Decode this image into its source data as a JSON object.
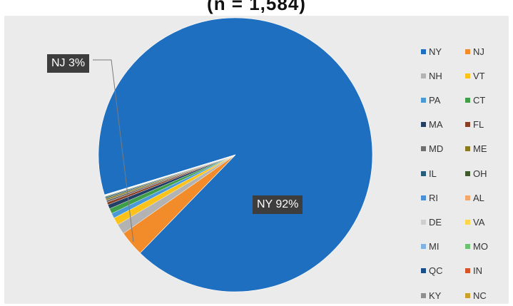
{
  "chart_data": {
    "type": "pie",
    "title": "(n = 1,584)",
    "slices": [
      {
        "name": "NY",
        "value": 92,
        "color": "#1f6fc0"
      },
      {
        "name": "NJ",
        "value": 3,
        "color": "#f28c2b"
      },
      {
        "name": "NH",
        "value": 1.2,
        "color": "#b3b3b3"
      },
      {
        "name": "VT",
        "value": 0.9,
        "color": "#fbc21a"
      },
      {
        "name": "PA",
        "value": 0.6,
        "color": "#4b9ad8"
      },
      {
        "name": "CT",
        "value": 0.6,
        "color": "#3f9e48"
      },
      {
        "name": "MA",
        "value": 0.5,
        "color": "#233f66"
      },
      {
        "name": "FL",
        "value": 0.3,
        "color": "#8a3e24"
      },
      {
        "name": "MD",
        "value": 0.25,
        "color": "#6f6f6f"
      },
      {
        "name": "ME",
        "value": 0.2,
        "color": "#8c7a1e"
      },
      {
        "name": "IL",
        "value": 0.15,
        "color": "#275d7a"
      },
      {
        "name": "OH",
        "value": 0.1,
        "color": "#3f5a2d"
      },
      {
        "name": "RI",
        "value": 0.05,
        "color": "#4a90d9"
      },
      {
        "name": "AL",
        "value": 0.04,
        "color": "#f4a76a"
      },
      {
        "name": "DE",
        "value": 0.03,
        "color": "#cfcfcf"
      },
      {
        "name": "VA",
        "value": 0.02,
        "color": "#ffd54a"
      },
      {
        "name": "MI",
        "value": 0.02,
        "color": "#7fb3e3"
      },
      {
        "name": "MO",
        "value": 0.02,
        "color": "#6cc36f"
      },
      {
        "name": "QC",
        "value": 0.01,
        "color": "#1b4f8c"
      },
      {
        "name": "IN",
        "value": 0.01,
        "color": "#d9532a"
      },
      {
        "name": "KY",
        "value": 0.01,
        "color": "#8f8f8f"
      },
      {
        "name": "NC",
        "value": 0.01,
        "color": "#c9a227"
      }
    ],
    "data_labels": [
      {
        "slice": "NY",
        "text": "NY 92%"
      },
      {
        "slice": "NJ",
        "text": "NJ 3%"
      }
    ],
    "legend_position": "right"
  }
}
